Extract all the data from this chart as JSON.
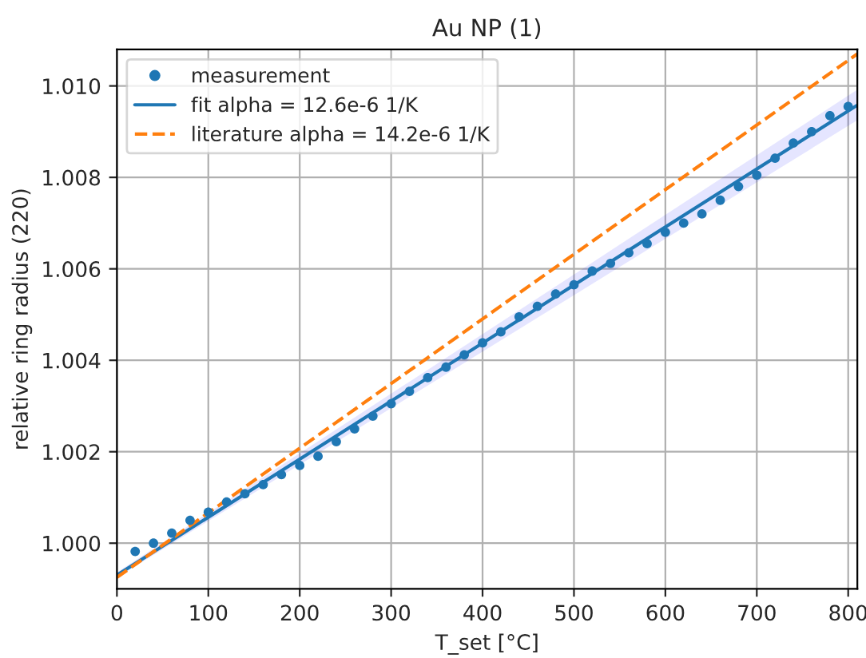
{
  "chart_data": {
    "type": "scatter",
    "title": "Au NP (1)",
    "xlabel": "T_set [°C]",
    "ylabel": "relative ring radius (220)",
    "xlim": [
      0,
      810
    ],
    "ylim": [
      0.999,
      1.0108
    ],
    "xticks": [
      0,
      100,
      200,
      300,
      400,
      500,
      600,
      700,
      800
    ],
    "yticks": [
      {
        "value": 1.0,
        "label": "1.000"
      },
      {
        "value": 1.002,
        "label": "1.002"
      },
      {
        "value": 1.004,
        "label": "1.004"
      },
      {
        "value": 1.006,
        "label": "1.006"
      },
      {
        "value": 1.008,
        "label": "1.008"
      },
      {
        "value": 1.01,
        "label": "1.010"
      }
    ],
    "grid": true,
    "legend": "top left",
    "series": [
      {
        "name": "measurement",
        "marker": "circle",
        "color": "#1f77b4",
        "x": [
          20,
          40,
          60,
          80,
          100,
          120,
          140,
          160,
          180,
          200,
          220,
          240,
          260,
          280,
          300,
          320,
          340,
          360,
          380,
          400,
          420,
          440,
          460,
          480,
          500,
          520,
          540,
          560,
          580,
          600,
          620,
          640,
          660,
          680,
          700,
          720,
          740,
          760,
          780,
          800
        ],
        "values": [
          0.99982,
          1.0,
          1.00022,
          1.0005,
          1.00068,
          1.0009,
          1.00108,
          1.00128,
          1.0015,
          1.0017,
          1.0019,
          1.00222,
          1.0025,
          1.00278,
          1.00305,
          1.00332,
          1.00362,
          1.00385,
          1.00412,
          1.00438,
          1.00462,
          1.00495,
          1.00518,
          1.00545,
          1.00565,
          1.00595,
          1.00612,
          1.00635,
          1.00655,
          1.0068,
          1.007,
          1.0072,
          1.0075,
          1.0078,
          1.00805,
          1.00842,
          1.00875,
          1.009,
          1.00935,
          1.00955
        ]
      },
      {
        "name": "fit alpha = 12.6e-6 1/K",
        "type": "line",
        "line_style": "solid",
        "color": "#1f77b4",
        "x": [
          0,
          810
        ],
        "values": [
          0.9993,
          1.00958
        ],
        "lower": [
          0.99925,
          1.00925
        ],
        "upper": [
          0.99936,
          1.00992
        ]
      },
      {
        "name": "literature alpha = 14.2e-6 1/K",
        "type": "line",
        "line_style": "dashed",
        "color": "#ff7f0e",
        "x": [
          0,
          810
        ],
        "values": [
          0.99925,
          1.0107
        ]
      }
    ]
  }
}
